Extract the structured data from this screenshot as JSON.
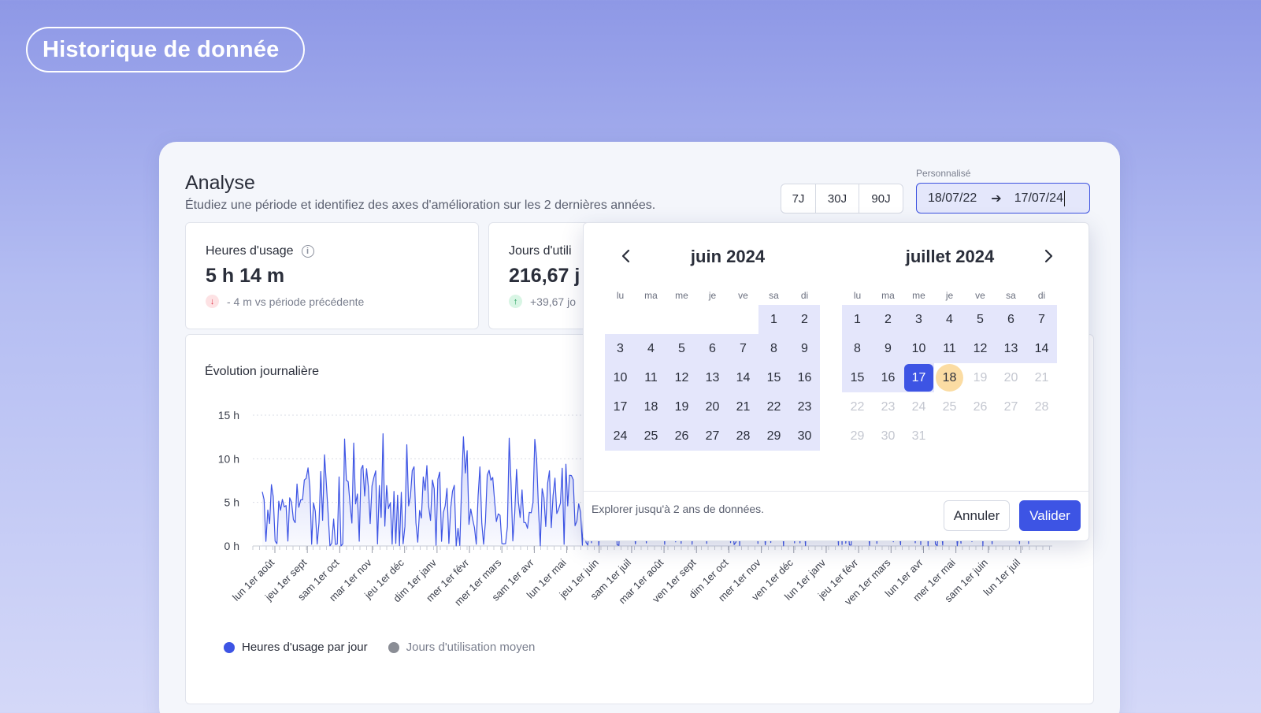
{
  "hero": {
    "title": "Historique de donnée"
  },
  "header": {
    "title": "Analyse",
    "subtitle": "Étudiez une période et identifiez des axes d'amélioration sur les 2 dernières années."
  },
  "range_buttons": [
    "7J",
    "30J",
    "90J"
  ],
  "custom_range": {
    "label": "Personnalisé",
    "start": "18/07/22",
    "end": "17/07/24"
  },
  "stats": [
    {
      "label": "Heures d'usage",
      "value": "5 h 14 m",
      "delta": "- 4 m vs période précédente",
      "trend": "down"
    },
    {
      "label": "Jours d'utili",
      "value": "216,67 j",
      "delta": "+39,67 jo",
      "trend": "up"
    }
  ],
  "chart_data": {
    "type": "line",
    "title": "Évolution journalière",
    "y_ticks": [
      "15 h",
      "10 h",
      "5 h",
      "0 h"
    ],
    "ylim": [
      0,
      15
    ],
    "x_tick_labels": [
      "lun 1er août",
      "jeu 1er sept",
      "sam 1er oct",
      "mar 1er nov",
      "jeu 1er déc",
      "dim 1er janv",
      "mer 1er févr",
      "mer 1er mars",
      "sam 1er avr",
      "lun 1er mai",
      "jeu 1er juin",
      "sam 1er juil",
      "mar 1er août",
      "ven 1er sept",
      "dim 1er oct",
      "mer 1er nov",
      "ven 1er déc",
      "lun 1er janv",
      "jeu 1er févr",
      "ven 1er mars",
      "lun 1er avr",
      "mer 1er mai",
      "sam 1er juin",
      "lun 1er juil"
    ],
    "series": [
      {
        "name": "Heures d'usage par jour",
        "color": "#3d54e4"
      },
      {
        "name": "Jours d'utilisation moyen",
        "color": "#8a8d95"
      }
    ]
  },
  "datepicker": {
    "dow": [
      "lu",
      "ma",
      "me",
      "je",
      "ve",
      "sa",
      "di"
    ],
    "left_month": {
      "title": "juin 2024",
      "weeks": [
        [
          "",
          "",
          "",
          "",
          "",
          "1",
          "2"
        ],
        [
          "3",
          "4",
          "5",
          "6",
          "7",
          "8",
          "9"
        ],
        [
          "10",
          "11",
          "12",
          "13",
          "14",
          "15",
          "16"
        ],
        [
          "17",
          "18",
          "19",
          "20",
          "21",
          "22",
          "23"
        ],
        [
          "24",
          "25",
          "26",
          "27",
          "28",
          "29",
          "30"
        ]
      ]
    },
    "right_month": {
      "title": "juillet 2024",
      "weeks": [
        [
          "1",
          "2",
          "3",
          "4",
          "5",
          "6",
          "7"
        ],
        [
          "8",
          "9",
          "10",
          "11",
          "12",
          "13",
          "14"
        ],
        [
          "15",
          "16",
          "17",
          "18",
          "19",
          "20",
          "21"
        ],
        [
          "22",
          "23",
          "24",
          "25",
          "26",
          "27",
          "28"
        ],
        [
          "29",
          "30",
          "31",
          "",
          "",
          "",
          ""
        ]
      ],
      "selected_day": "17",
      "today_day": "18"
    },
    "footer_note": "Explorer jusqu'à 2 ans de données.",
    "cancel_label": "Annuler",
    "validate_label": "Valider",
    "nav_icons": [
      "chevron-left-icon",
      "chevron-right-icon"
    ]
  }
}
